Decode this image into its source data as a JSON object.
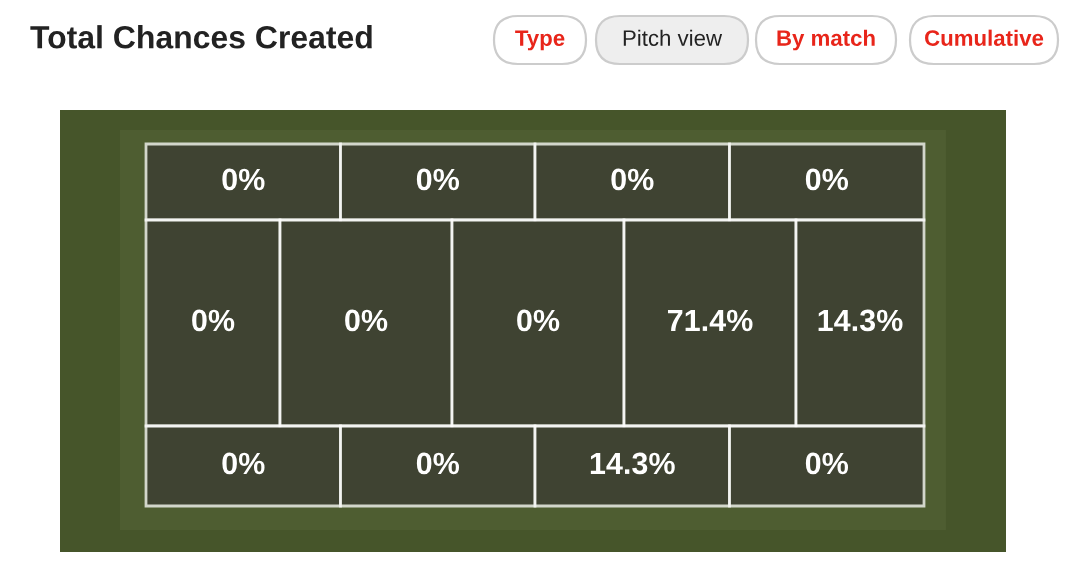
{
  "chart_data": {
    "type": "other",
    "title": "Total Chances Created",
    "annotations": [
      "Type",
      "Pitch view",
      "By match",
      "Cumulative"
    ],
    "values": [
      0,
      0,
      0,
      0,
      0,
      0,
      0,
      71.4,
      14.3,
      0,
      0,
      14.3,
      0
    ],
    "value_labels": [
      "0%",
      "0%",
      "0%",
      "0%",
      "0%",
      "0%",
      "0%",
      "71.4%",
      "14.3%",
      "0%",
      "0%",
      "14.3%",
      "0%"
    ]
  }
}
